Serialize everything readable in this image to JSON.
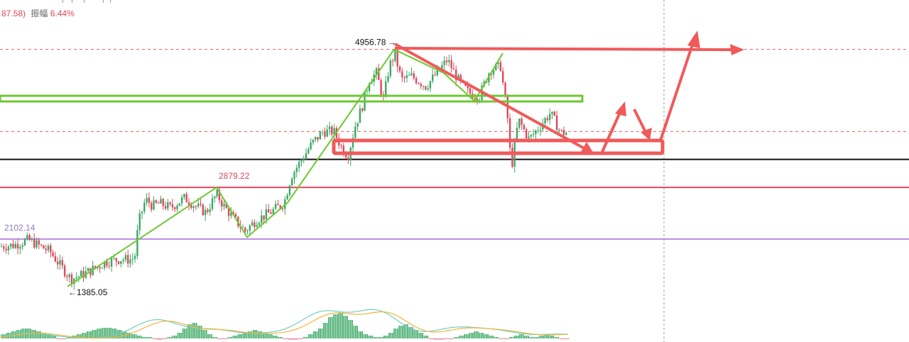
{
  "header": {
    "prefix": "87.58)",
    "amplitude_label": "振幅",
    "amplitude_value": "6.44%"
  },
  "colors": {
    "up": "#3aa864",
    "down": "#e0475c",
    "green_pattern": "#6cc832",
    "red_annot": "#f05a5a",
    "purple": "#b68be6",
    "black": "#111111",
    "dif": "#6fcfc2",
    "dea": "#f0b43c"
  },
  "chart_data": {
    "type": "candlestick",
    "y_range": [
      1000,
      5700
    ],
    "price_path": [
      [
        0,
        1990
      ],
      [
        20,
        2010
      ],
      [
        40,
        2090
      ],
      [
        55,
        2000
      ],
      [
        70,
        1920
      ],
      [
        85,
        1700
      ],
      [
        100,
        1500
      ],
      [
        115,
        1560
      ],
      [
        130,
        1640
      ],
      [
        150,
        1760
      ],
      [
        170,
        1800
      ],
      [
        185,
        1790
      ],
      [
        190,
        1850
      ],
      [
        195,
        2350
      ],
      [
        205,
        2700
      ],
      [
        215,
        2600
      ],
      [
        225,
        2640
      ],
      [
        240,
        2570
      ],
      [
        260,
        2720
      ],
      [
        275,
        2600
      ],
      [
        290,
        2500
      ],
      [
        305,
        2780
      ],
      [
        315,
        2600
      ],
      [
        330,
        2400
      ],
      [
        345,
        2220
      ],
      [
        360,
        2380
      ],
      [
        380,
        2500
      ],
      [
        400,
        2640
      ],
      [
        410,
        3050
      ],
      [
        425,
        3300
      ],
      [
        440,
        3550
      ],
      [
        455,
        3720
      ],
      [
        470,
        3720
      ],
      [
        480,
        3500
      ],
      [
        490,
        3350
      ],
      [
        500,
        3800
      ],
      [
        510,
        4100
      ],
      [
        520,
        4500
      ],
      [
        530,
        4600
      ],
      [
        540,
        4200
      ],
      [
        548,
        4700
      ],
      [
        556,
        4890
      ],
      [
        565,
        4500
      ],
      [
        580,
        4550
      ],
      [
        600,
        4400
      ],
      [
        615,
        4600
      ],
      [
        630,
        4800
      ],
      [
        645,
        4500
      ],
      [
        660,
        4300
      ],
      [
        675,
        4250
      ],
      [
        690,
        4650
      ],
      [
        705,
        4700
      ],
      [
        715,
        3900
      ],
      [
        720,
        3150
      ],
      [
        730,
        3900
      ],
      [
        745,
        3600
      ],
      [
        760,
        3800
      ],
      [
        775,
        4000
      ],
      [
        790,
        3700
      ],
      [
        800,
        3700
      ]
    ],
    "horizontal_levels": [
      {
        "value": 4956.78,
        "color": "#f05a5a",
        "style": "dashed"
      },
      {
        "value": 3720,
        "color": "#f05a5a",
        "style": "dashed"
      },
      {
        "value": 3300,
        "color": "#111111",
        "style": "solid"
      },
      {
        "value": 2879.22,
        "color": "#e0475c",
        "style": "solid"
      },
      {
        "value": 2102.14,
        "color": "#b68be6",
        "style": "solid"
      }
    ],
    "annotations": [
      {
        "text": "4956.78",
        "arrow": "→",
        "value": 4956.78,
        "color": "#111111"
      },
      {
        "text": "2879.22",
        "value": 2879.22,
        "color": "#e0475c"
      },
      {
        "text": "2102.14",
        "value": 2102.14,
        "color": "#8e7cc3"
      },
      {
        "text": "1385.05",
        "arrow": "←",
        "value": 1385.05,
        "color": "#111111"
      }
    ],
    "green_zigzag": [
      [
        95,
        1385
      ],
      [
        305,
        2879
      ],
      [
        348,
        2130
      ],
      [
        405,
        2650
      ],
      [
        555,
        4957
      ],
      [
        625,
        4600
      ],
      [
        668,
        4180
      ],
      [
        708,
        4900
      ]
    ],
    "red_projection": [
      [
        848,
        3230
      ],
      [
        880,
        3780
      ],
      [
        920,
        3240
      ],
      [
        975,
        5450
      ]
    ],
    "macd_histogram": [
      6,
      8,
      10,
      12,
      14,
      14,
      12,
      10,
      8,
      6,
      4,
      -2,
      -2,
      2,
      4,
      6,
      8,
      10,
      12,
      14,
      15,
      15,
      14,
      12,
      10,
      8,
      6,
      4,
      2,
      2,
      -2,
      -3,
      -2,
      2,
      4,
      8,
      14,
      20,
      22,
      18,
      12,
      6,
      2,
      -2,
      -2,
      2,
      4,
      6,
      8,
      10,
      12,
      10,
      8,
      6,
      4,
      2,
      -2,
      -3,
      -3,
      -2,
      2,
      6,
      10,
      14,
      22,
      30,
      34,
      36,
      32,
      26,
      18,
      10,
      6,
      4,
      2,
      2,
      4,
      8,
      14,
      18,
      20,
      16,
      12,
      8,
      4,
      -2,
      -3,
      -3,
      -2,
      -2,
      2,
      4,
      6,
      8,
      10,
      8,
      6,
      4,
      2,
      -2,
      -2,
      2,
      4,
      6,
      4,
      2,
      2,
      4,
      6,
      4,
      2,
      -2,
      -2
    ]
  }
}
